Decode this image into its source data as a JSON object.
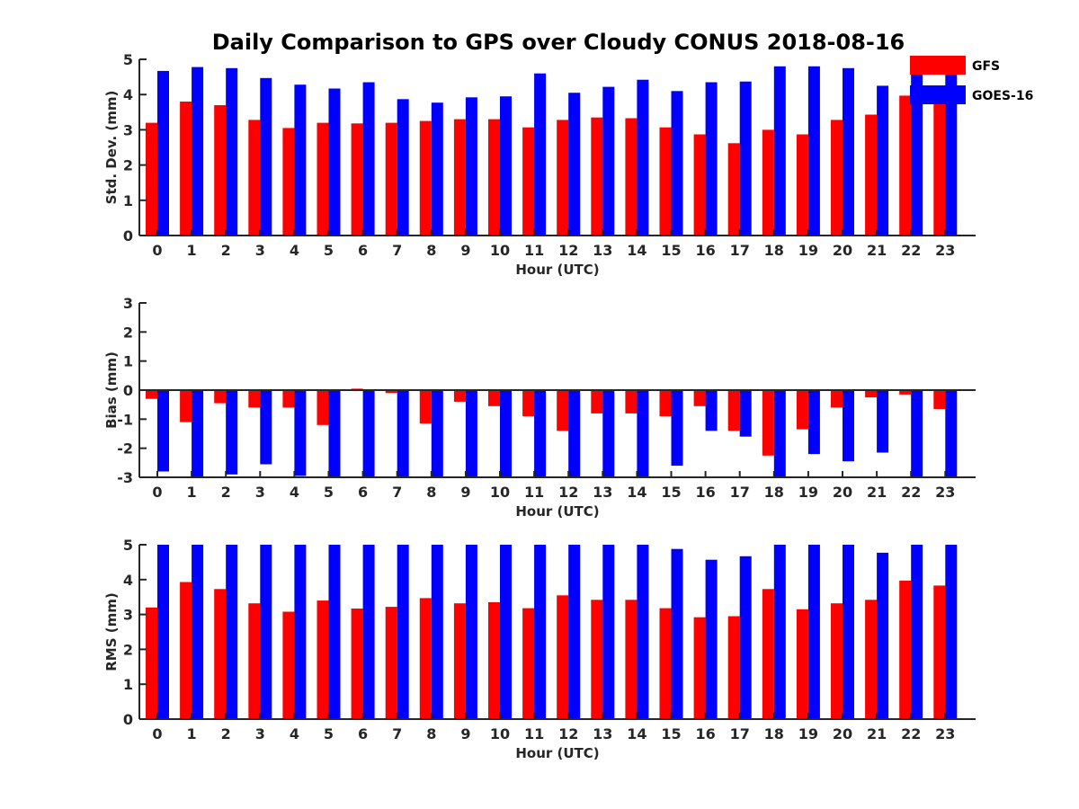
{
  "title": "Daily Comparison to GPS over Cloudy CONUS 2018-08-16",
  "colors": {
    "GFS": "#ff0000",
    "GOES-16": "#0000ff",
    "axis": "#262626"
  },
  "legend": {
    "placement": "top-right",
    "entries": [
      "GFS",
      "GOES-16"
    ]
  },
  "chart_data": [
    {
      "type": "bar",
      "xlabel": "Hour (UTC)",
      "ylabel": "Std. Dev. (mm)",
      "ylim": [
        0,
        5
      ],
      "yticks": [
        0,
        1,
        2,
        3,
        4,
        5
      ],
      "categories": [
        "0",
        "1",
        "2",
        "3",
        "4",
        "5",
        "6",
        "7",
        "8",
        "9",
        "10",
        "11",
        "12",
        "13",
        "14",
        "15",
        "16",
        "17",
        "18",
        "19",
        "20",
        "21",
        "22",
        "23"
      ],
      "series": [
        {
          "name": "GFS",
          "color": "#ff0000",
          "values": [
            3.2,
            3.8,
            3.7,
            3.28,
            3.05,
            3.2,
            3.18,
            3.2,
            3.25,
            3.3,
            3.3,
            3.07,
            3.28,
            3.35,
            3.33,
            3.07,
            2.87,
            2.62,
            3.0,
            2.87,
            3.28,
            3.43,
            3.97,
            3.85
          ]
        },
        {
          "name": "GOES-16",
          "color": "#0000ff",
          "values": [
            4.67,
            4.78,
            4.75,
            4.47,
            4.28,
            4.17,
            4.35,
            3.87,
            3.77,
            3.92,
            3.95,
            4.6,
            4.05,
            4.22,
            4.42,
            4.1,
            4.35,
            4.37,
            4.8,
            4.8,
            4.75,
            4.25,
            5.0,
            5.0
          ]
        }
      ]
    },
    {
      "type": "bar",
      "xlabel": "Hour (UTC)",
      "ylabel": "Bias (mm)",
      "ylim": [
        -3,
        3
      ],
      "yticks": [
        -3,
        -2,
        -1,
        0,
        1,
        2,
        3
      ],
      "categories": [
        "0",
        "1",
        "2",
        "3",
        "4",
        "5",
        "6",
        "7",
        "8",
        "9",
        "10",
        "11",
        "12",
        "13",
        "14",
        "15",
        "16",
        "17",
        "18",
        "19",
        "20",
        "21",
        "22",
        "23"
      ],
      "series": [
        {
          "name": "GFS",
          "color": "#ff0000",
          "values": [
            -0.3,
            -1.1,
            -0.45,
            -0.6,
            -0.6,
            -1.2,
            0.05,
            -0.1,
            -1.15,
            -0.4,
            -0.55,
            -0.9,
            -1.4,
            -0.8,
            -0.8,
            -0.9,
            -0.55,
            -1.4,
            -2.25,
            -1.35,
            -0.6,
            -0.25,
            -0.15,
            -0.65
          ]
        },
        {
          "name": "GOES-16",
          "color": "#0000ff",
          "values": [
            -2.8,
            -3.0,
            -2.9,
            -2.55,
            -2.95,
            -3.0,
            -3.0,
            -3.0,
            -3.0,
            -3.0,
            -3.0,
            -3.0,
            -3.0,
            -3.0,
            -3.0,
            -2.6,
            -1.4,
            -1.6,
            -3.0,
            -2.2,
            -2.45,
            -2.15,
            -3.0,
            -3.0
          ]
        }
      ]
    },
    {
      "type": "bar",
      "xlabel": "Hour (UTC)",
      "ylabel": "RMS (mm)",
      "ylim": [
        0,
        5
      ],
      "yticks": [
        0,
        1,
        2,
        3,
        4,
        5
      ],
      "categories": [
        "0",
        "1",
        "2",
        "3",
        "4",
        "5",
        "6",
        "7",
        "8",
        "9",
        "10",
        "11",
        "12",
        "13",
        "14",
        "15",
        "16",
        "17",
        "18",
        "19",
        "20",
        "21",
        "22",
        "23"
      ],
      "series": [
        {
          "name": "GFS",
          "color": "#ff0000",
          "values": [
            3.2,
            3.93,
            3.73,
            3.32,
            3.08,
            3.4,
            3.17,
            3.22,
            3.47,
            3.32,
            3.35,
            3.18,
            3.55,
            3.42,
            3.42,
            3.18,
            2.92,
            2.95,
            3.73,
            3.15,
            3.32,
            3.42,
            3.97,
            3.83
          ]
        },
        {
          "name": "GOES-16",
          "color": "#0000ff",
          "values": [
            5.0,
            5.0,
            5.0,
            5.0,
            5.0,
            5.0,
            5.0,
            5.0,
            5.0,
            5.0,
            5.0,
            5.0,
            5.0,
            5.0,
            5.0,
            4.88,
            4.57,
            4.67,
            5.0,
            5.0,
            5.0,
            4.77,
            5.0,
            5.0
          ]
        }
      ]
    }
  ]
}
